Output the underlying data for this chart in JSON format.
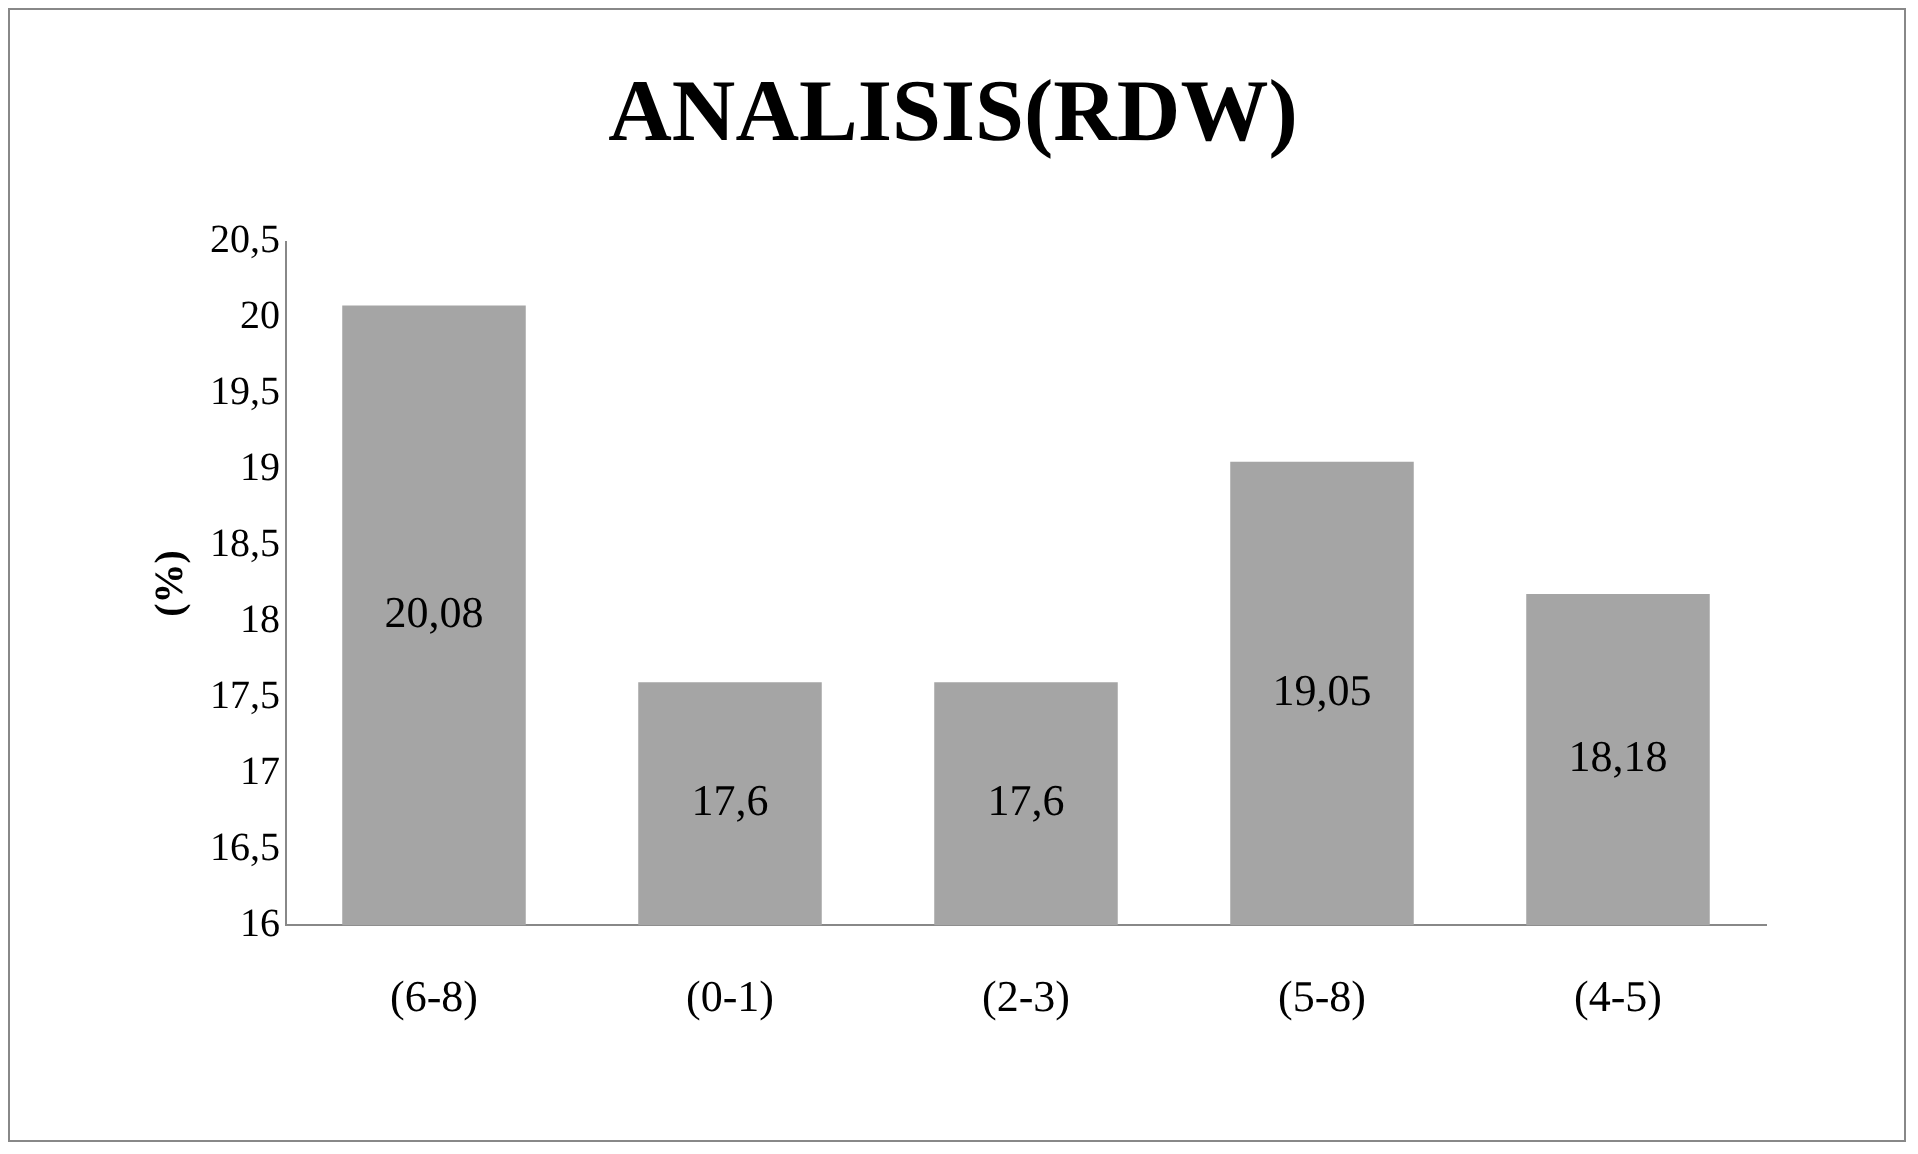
{
  "chart_data": {
    "type": "bar",
    "title": "ANALISIS(RDW)",
    "ylabel": "(%)",
    "categories": [
      "(6-8)",
      "(0-1)",
      "(2-3)",
      "(5-8)",
      "(4-5)"
    ],
    "values": [
      20.08,
      17.6,
      17.6,
      19.05,
      18.18
    ],
    "value_labels": [
      "20,08",
      "17,6",
      "17,6",
      "19,05",
      "18,18"
    ],
    "color": "#a5a5a5",
    "ylim": [
      16,
      20.5
    ],
    "yticks": [
      16,
      {
        "value": 16.5,
        "label": "16,5"
      },
      17,
      {
        "value": 17.5,
        "label": "17,5"
      },
      18,
      {
        "value": 18.5,
        "label": "18,5"
      },
      19,
      {
        "value": 19.5,
        "label": "19,5"
      },
      20,
      {
        "value": 20.5,
        "label": "20,5"
      }
    ],
    "grid": false,
    "legend": false
  }
}
